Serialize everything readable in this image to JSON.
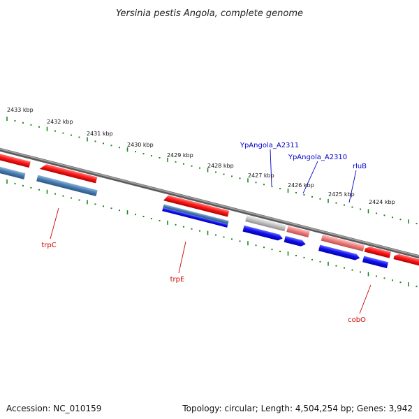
{
  "title": "Yersinia pestis Angola, complete genome",
  "accession": "Accession: NC_010159",
  "topology": "Topology: circular; Length: 4,504,254 bp; Genes: 3,942",
  "ticks": [
    "2433 kbp",
    "2432 kbp",
    "2431 kbp",
    "2430 kbp",
    "2429 kbp",
    "2428 kbp",
    "2427 kbp",
    "2426 kbp",
    "2425 kbp",
    "2424 kbp"
  ],
  "labels": {
    "ypangola_a2311": "YpAngola_A2311",
    "ypangola_a2310": "YpAngola_A2310",
    "rlub": "rluB",
    "trpc": "trpC",
    "trpe": "trpE",
    "cobo": "cobO"
  },
  "colors": {
    "backbone": "#777777",
    "tick_green": "#1a8a1a",
    "gene_red": "#ee1111",
    "gene_blue": "#1111ee",
    "gene_steel": "#4a7fb5",
    "gene_pink": "#f08080",
    "gene_grey": "#bdbdbd",
    "label_blue": "#0000cc",
    "label_red": "#cc0000"
  }
}
